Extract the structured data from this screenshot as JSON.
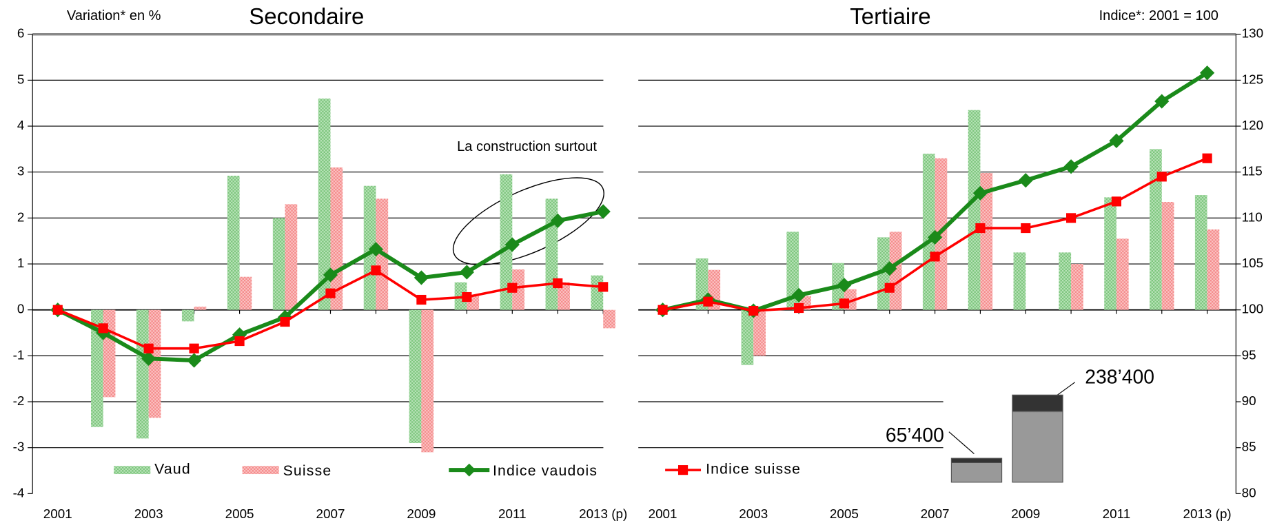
{
  "chart_data": [
    {
      "type": "combo",
      "title": "Secondaire",
      "y_label": "Variation* en %",
      "annotation": "La construction surtout",
      "categories": [
        "2001",
        null,
        "2003",
        null,
        "2005",
        null,
        "2007",
        null,
        "2009",
        null,
        "2011",
        null,
        "2013 (p)"
      ],
      "series": [
        {
          "name": "Vaud",
          "color": "#8fd08f",
          "values": [
            0,
            -2.55,
            -2.8,
            -0.25,
            2.92,
            2.0,
            4.6,
            2.7,
            -2.9,
            0.6,
            2.95,
            2.42,
            0.75
          ]
        },
        {
          "name": "Suisse",
          "color": "#f79a9a",
          "values": [
            0,
            -1.9,
            -2.35,
            0.07,
            0.72,
            2.3,
            3.1,
            2.42,
            -3.1,
            0.3,
            0.88,
            0.6,
            -0.4
          ]
        },
        {
          "name": "Indice vaudois",
          "color": "#1a8a1a",
          "axis": "y2",
          "values": [
            100,
            97.5,
            94.7,
            94.5,
            97.3,
            99.2,
            103.8,
            106.6,
            103.5,
            104.1,
            107.1,
            109.7,
            110.7
          ]
        },
        {
          "name": "Indice suisse",
          "color": "#ff0000",
          "axis": "y2",
          "values": [
            100,
            98.0,
            95.8,
            95.8,
            96.6,
            98.7,
            101.8,
            104.3,
            101.1,
            101.4,
            102.4,
            102.9,
            102.5
          ]
        }
      ],
      "ylim": [
        -4,
        6
      ],
      "yticks": [
        -4,
        -3,
        -2,
        -1,
        0,
        1,
        2,
        3,
        4,
        5,
        6
      ],
      "grid": true
    },
    {
      "type": "combo",
      "title": "Tertiaire",
      "y2_label": "Indice*: 2001 = 100",
      "categories": [
        "2001",
        null,
        "2003",
        null,
        "2005",
        null,
        "2007",
        null,
        "2009",
        null,
        "2011",
        null,
        "2013 (p)"
      ],
      "series": [
        {
          "name": "Vaud",
          "color": "#8fd08f",
          "values": [
            0,
            1.12,
            -1.2,
            1.7,
            1.02,
            1.58,
            3.4,
            4.35,
            1.25,
            1.25,
            2.45,
            3.5,
            2.5
          ]
        },
        {
          "name": "Suisse",
          "color": "#f79a9a",
          "values": [
            0,
            0.87,
            -1.0,
            0.3,
            0.45,
            1.7,
            3.3,
            2.98,
            0,
            1.0,
            1.55,
            2.35,
            1.75
          ]
        },
        {
          "name": "Indice vaudois",
          "color": "#1a8a1a",
          "axis": "y2",
          "values": [
            100,
            101.1,
            99.9,
            101.6,
            102.7,
            104.5,
            107.9,
            112.7,
            114.1,
            115.6,
            118.4,
            122.7,
            125.8
          ]
        },
        {
          "name": "Indice suisse",
          "color": "#ff0000",
          "axis": "y2",
          "values": [
            100,
            100.9,
            99.9,
            100.2,
            100.7,
            102.4,
            105.8,
            108.9,
            108.9,
            110.0,
            111.8,
            114.5,
            116.5
          ]
        }
      ],
      "y2lim": [
        80,
        130
      ],
      "y2ticks": [
        80,
        85,
        90,
        95,
        100,
        105,
        110,
        115,
        120,
        125,
        130
      ]
    }
  ],
  "inset": {
    "type": "bar",
    "values": [
      65400,
      238400
    ],
    "value_labels": [
      "65’400",
      "238’400"
    ]
  }
}
